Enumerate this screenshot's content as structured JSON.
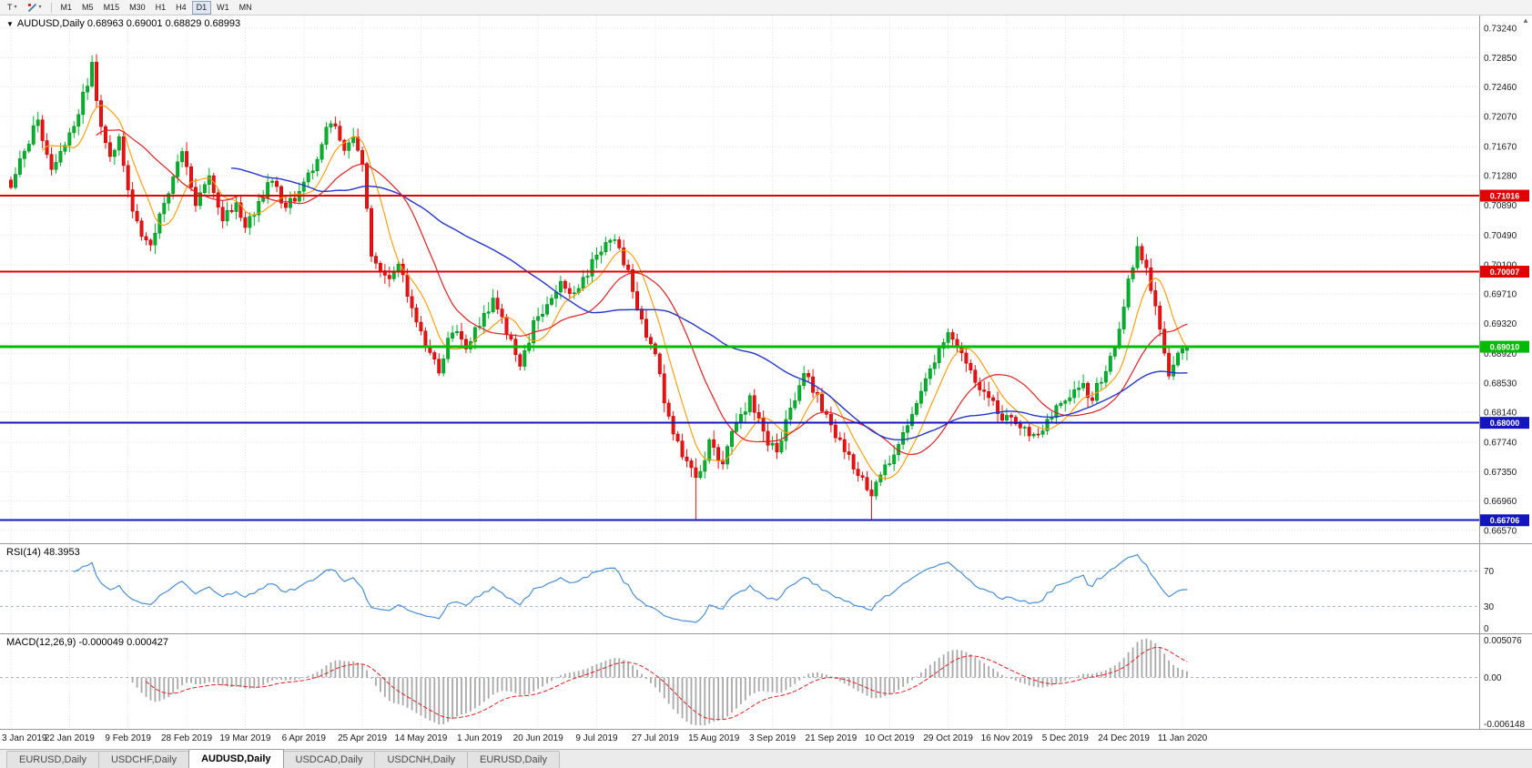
{
  "toolbar": {
    "templates_label": "T",
    "timeframes": [
      "M1",
      "M5",
      "M15",
      "M30",
      "H1",
      "H4",
      "D1",
      "W1",
      "MN"
    ],
    "active_timeframe": "D1"
  },
  "icons": {
    "triangle_down": "▼",
    "caret_down": "▾",
    "scroll_up": "▲"
  },
  "chart": {
    "title": "AUDUSD,Daily 0.68963 0.69001 0.68829 0.68993"
  },
  "chart_data": {
    "type": "candlestick",
    "symbol": "AUDUSD",
    "timeframe": "Daily",
    "last_candle": {
      "o": 0.68963,
      "h": 0.69001,
      "l": 0.68829,
      "c": 0.68993
    },
    "price_axis_ticks": [
      "0.73240",
      "0.72850",
      "0.72460",
      "0.72070",
      "0.71670",
      "0.71280",
      "0.70890",
      "0.70490",
      "0.70100",
      "0.69710",
      "0.69320",
      "0.68920",
      "0.68530",
      "0.68140",
      "0.67740",
      "0.67350",
      "0.66960",
      "0.66570"
    ],
    "date_labels": [
      "3 Jan 2019",
      "22 Jan 2019",
      "9 Feb 2019",
      "28 Feb 2019",
      "19 Mar 2019",
      "6 Apr 2019",
      "25 Apr 2019",
      "14 May 2019",
      "1 Jun 2019",
      "20 Jun 2019",
      "9 Jul 2019",
      "27 Jul 2019",
      "15 Aug 2019",
      "3 Sep 2019",
      "21 Sep 2019",
      "10 Oct 2019",
      "29 Oct 2019",
      "16 Nov 2019",
      "5 Dec 2019",
      "24 Dec 2019",
      "11 Jan 2020"
    ],
    "label_step": 13,
    "num_candles": 262,
    "horizontal_lines": [
      {
        "price": 0.71016,
        "label": "0.71016",
        "color": "#e00000",
        "width": 2
      },
      {
        "price": 0.70007,
        "label": "0.70007",
        "color": "#e00000",
        "width": 2
      },
      {
        "price": 0.6901,
        "label": "0.69010",
        "color": "#00bb00",
        "width": 3
      },
      {
        "price": 0.68,
        "label": "0.68000",
        "color": "#1515c0",
        "width": 2
      },
      {
        "price": 0.66706,
        "label": "0.66706",
        "color": "#1515c0",
        "width": 2
      }
    ],
    "close_anchors": [
      [
        0,
        0.7115
      ],
      [
        3,
        0.716
      ],
      [
        6,
        0.7205
      ],
      [
        9,
        0.7135
      ],
      [
        12,
        0.7165
      ],
      [
        15,
        0.7215
      ],
      [
        18,
        0.7272
      ],
      [
        20,
        0.7195
      ],
      [
        22,
        0.7148
      ],
      [
        24,
        0.7185
      ],
      [
        26,
        0.7105
      ],
      [
        29,
        0.7052
      ],
      [
        31,
        0.7035
      ],
      [
        34,
        0.7095
      ],
      [
        38,
        0.7158
      ],
      [
        41,
        0.709
      ],
      [
        44,
        0.7125
      ],
      [
        47,
        0.7072
      ],
      [
        50,
        0.7095
      ],
      [
        52,
        0.7062
      ],
      [
        55,
        0.709
      ],
      [
        58,
        0.7125
      ],
      [
        61,
        0.7082
      ],
      [
        64,
        0.711
      ],
      [
        67,
        0.714
      ],
      [
        70,
        0.7188
      ],
      [
        72,
        0.72
      ],
      [
        74,
        0.7162
      ],
      [
        76,
        0.718
      ],
      [
        78,
        0.7148
      ],
      [
        80,
        0.7028
      ],
      [
        83,
        0.6992
      ],
      [
        86,
        0.701
      ],
      [
        89,
        0.6952
      ],
      [
        92,
        0.6902
      ],
      [
        95,
        0.687
      ],
      [
        98,
        0.6925
      ],
      [
        101,
        0.6902
      ],
      [
        104,
        0.6932
      ],
      [
        107,
        0.6964
      ],
      [
        110,
        0.6922
      ],
      [
        113,
        0.6872
      ],
      [
        116,
        0.693
      ],
      [
        119,
        0.6958
      ],
      [
        122,
        0.699
      ],
      [
        125,
        0.6968
      ],
      [
        128,
        0.7
      ],
      [
        131,
        0.703
      ],
      [
        134,
        0.7044
      ],
      [
        137,
        0.7
      ],
      [
        140,
        0.6932
      ],
      [
        143,
        0.6892
      ],
      [
        146,
        0.6802
      ],
      [
        149,
        0.6756
      ],
      [
        152,
        0.6724
      ],
      [
        155,
        0.6772
      ],
      [
        158,
        0.6748
      ],
      [
        161,
        0.68
      ],
      [
        164,
        0.6832
      ],
      [
        167,
        0.6784
      ],
      [
        170,
        0.6762
      ],
      [
        173,
        0.682
      ],
      [
        176,
        0.6866
      ],
      [
        179,
        0.6832
      ],
      [
        182,
        0.6792
      ],
      [
        185,
        0.6762
      ],
      [
        188,
        0.6732
      ],
      [
        191,
        0.6704
      ],
      [
        194,
        0.6742
      ],
      [
        197,
        0.6766
      ],
      [
        200,
        0.6812
      ],
      [
        203,
        0.6852
      ],
      [
        206,
        0.6894
      ],
      [
        208,
        0.692
      ],
      [
        211,
        0.689
      ],
      [
        214,
        0.6854
      ],
      [
        217,
        0.683
      ],
      [
        220,
        0.681
      ],
      [
        224,
        0.6792
      ],
      [
        228,
        0.6778
      ],
      [
        231,
        0.6812
      ],
      [
        234,
        0.6832
      ],
      [
        237,
        0.6852
      ],
      [
        240,
        0.6834
      ],
      [
        243,
        0.6872
      ],
      [
        246,
        0.692
      ],
      [
        248,
        0.6988
      ],
      [
        250,
        0.7034
      ],
      [
        252,
        0.7002
      ],
      [
        254,
        0.6952
      ],
      [
        257,
        0.6868
      ],
      [
        259,
        0.6896
      ],
      [
        261,
        0.68993
      ]
    ],
    "wick_events": [
      {
        "i": 18,
        "high": 0.7288
      },
      {
        "i": 95,
        "low": 0.6863
      },
      {
        "i": 134,
        "high": 0.7048
      },
      {
        "i": 152,
        "low": 0.66706
      },
      {
        "i": 191,
        "low": 0.6671
      },
      {
        "i": 250,
        "high": 0.7047
      }
    ],
    "indicators": {
      "rsi": {
        "label": "RSI(14) 48.3953",
        "levels": [
          70,
          30
        ],
        "axis_labels": [
          "70",
          "30",
          "0"
        ]
      },
      "macd": {
        "label": "MACD(12,26,9) -0.000049 0.000427",
        "axis_top": "0.005076",
        "axis_zero": "0.00",
        "axis_bottom": "-0.006148"
      }
    },
    "colors": {
      "up": "#00b22c",
      "up_border": "#00831f",
      "down": "#ee1111",
      "down_border": "#aa0000",
      "ma_fast": "#ff9900",
      "ma_mid": "#e02020",
      "ma_slow": "#2336c8",
      "rsi_line": "#4a8fd4",
      "level_line": "#aab4c8",
      "macd_hist": "#a8a8a8",
      "macd_signal": "#e02020",
      "grid": "#e4e4e4",
      "axis_text": "#1a1a1a",
      "axis_line": "#9a9a9a"
    }
  },
  "tabs": {
    "items": [
      "EURUSD,Daily",
      "USDCHF,Daily",
      "AUDUSD,Daily",
      "USDCAD,Daily",
      "USDCNH,Daily",
      "EURUSD,Daily"
    ],
    "active_index": 2
  }
}
